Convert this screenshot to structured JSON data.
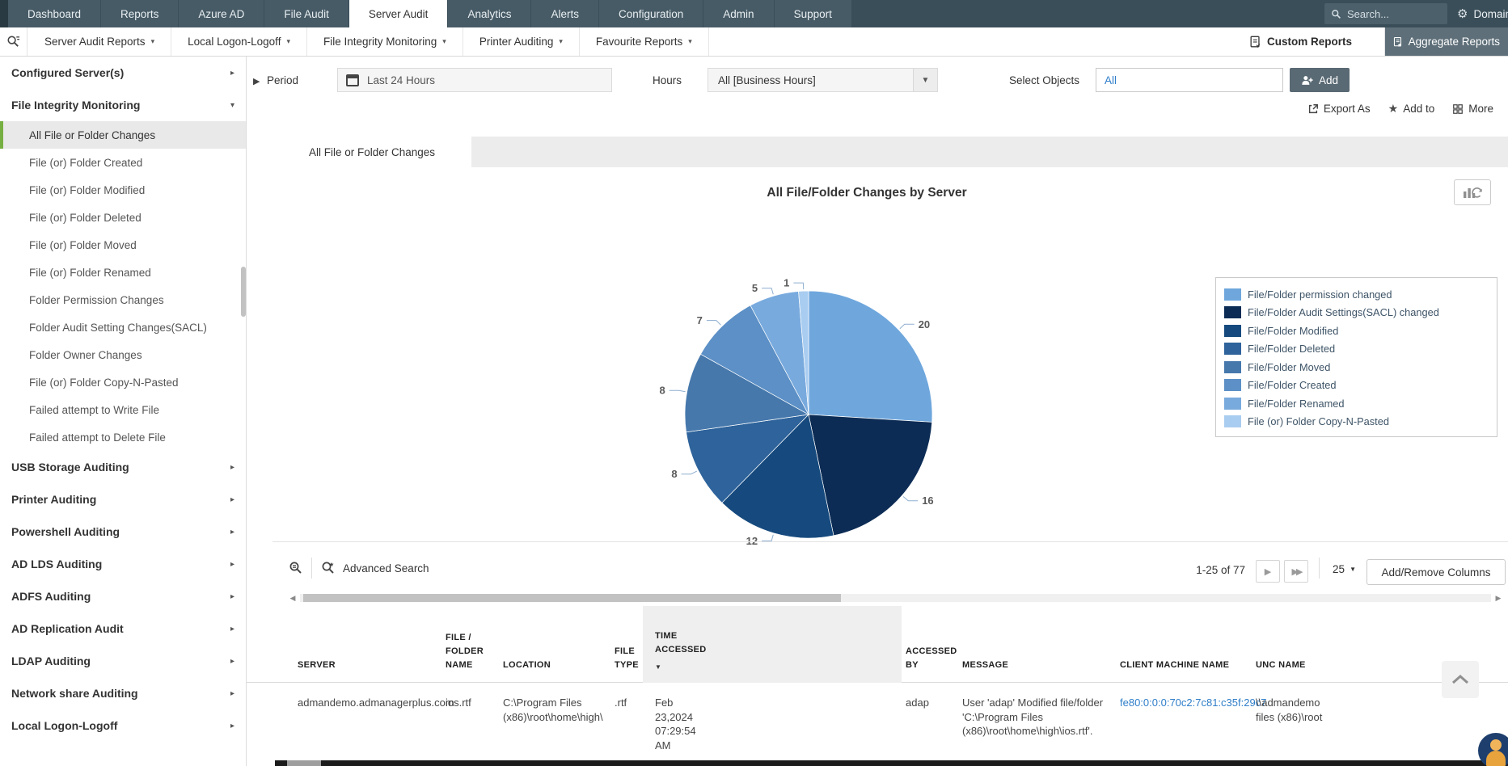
{
  "topnav": {
    "tabs": [
      {
        "label": "Dashboard",
        "active": false
      },
      {
        "label": "Reports",
        "active": false
      },
      {
        "label": "Azure AD",
        "active": false
      },
      {
        "label": "File Audit",
        "active": false
      },
      {
        "label": "Server Audit",
        "active": true
      },
      {
        "label": "Analytics",
        "active": false
      },
      {
        "label": "Alerts",
        "active": false
      },
      {
        "label": "Configuration",
        "active": false
      },
      {
        "label": "Admin",
        "active": false
      },
      {
        "label": "Support",
        "active": false
      }
    ],
    "search_placeholder": "Search...",
    "domain_settings_label": "Domain Settings"
  },
  "menubar": {
    "menus": [
      "Server Audit Reports",
      "Local Logon-Logoff",
      "File Integrity Monitoring",
      "Printer Auditing",
      "Favourite Reports"
    ],
    "custom_reports_label": "Custom Reports",
    "aggregate_reports_label": "Aggregate Reports"
  },
  "sidebar": {
    "entries": [
      {
        "label": "Configured Server(s)",
        "type": "section",
        "state": "collapsed"
      },
      {
        "label": "File Integrity Monitoring",
        "type": "section",
        "state": "expanded"
      },
      {
        "label": "All File or Folder Changes",
        "type": "item",
        "active": true
      },
      {
        "label": "File (or) Folder Created",
        "type": "item",
        "active": false
      },
      {
        "label": "File (or) Folder Modified",
        "type": "item",
        "active": false
      },
      {
        "label": "File (or) Folder Deleted",
        "type": "item",
        "active": false
      },
      {
        "label": "File (or) Folder Moved",
        "type": "item",
        "active": false
      },
      {
        "label": "File (or) Folder Renamed",
        "type": "item",
        "active": false
      },
      {
        "label": "Folder Permission Changes",
        "type": "item",
        "active": false
      },
      {
        "label": "Folder Audit Setting Changes(SACL)",
        "type": "item",
        "active": false
      },
      {
        "label": "Folder Owner Changes",
        "type": "item",
        "active": false
      },
      {
        "label": "File (or) Folder Copy-N-Pasted",
        "type": "item",
        "active": false
      },
      {
        "label": "Failed attempt to Write File",
        "type": "item",
        "active": false
      },
      {
        "label": "Failed attempt to Delete File",
        "type": "item",
        "active": false
      },
      {
        "label": "USB Storage Auditing",
        "type": "section",
        "state": "collapsed"
      },
      {
        "label": "Printer Auditing",
        "type": "section",
        "state": "collapsed"
      },
      {
        "label": "Powershell Auditing",
        "type": "section",
        "state": "collapsed"
      },
      {
        "label": "AD LDS Auditing",
        "type": "section",
        "state": "collapsed"
      },
      {
        "label": "ADFS Auditing",
        "type": "section",
        "state": "collapsed"
      },
      {
        "label": "AD Replication Audit",
        "type": "section",
        "state": "collapsed"
      },
      {
        "label": "LDAP Auditing",
        "type": "section",
        "state": "collapsed"
      },
      {
        "label": "Network share Auditing",
        "type": "section",
        "state": "collapsed"
      },
      {
        "label": "Local Logon-Logoff",
        "type": "section",
        "state": "collapsed"
      }
    ]
  },
  "filters": {
    "period_label": "Period",
    "period_value": "Last 24 Hours",
    "hours_label": "Hours",
    "hours_value": "All [Business Hours]",
    "objects_label": "Select Objects",
    "objects_value": "All",
    "add_button": "Add"
  },
  "actions": {
    "export_as": "Export As",
    "add_to": "Add to",
    "more": "More"
  },
  "report": {
    "active_tab": "All File or Folder Changes"
  },
  "chart_data": {
    "type": "pie",
    "title": "All File/Folder Changes by Server",
    "total": 77,
    "start_angle": "top",
    "direction": "clockwise",
    "legend_position": "right",
    "label_format": "value",
    "series": [
      {
        "name": "File/Folder permission changed",
        "value": 20,
        "color": "#6FA7DD"
      },
      {
        "name": "File/Folder Audit Settings(SACL) changed",
        "value": 16,
        "color": "#0C2C55"
      },
      {
        "name": "File/Folder Modified",
        "value": 12,
        "color": "#164A7E"
      },
      {
        "name": "File/Folder Deleted",
        "value": 8,
        "color": "#2E639B"
      },
      {
        "name": "File/Folder Moved",
        "value": 8,
        "color": "#4678AC"
      },
      {
        "name": "File/Folder Created",
        "value": 7,
        "color": "#5C90C6"
      },
      {
        "name": "File/Folder Renamed",
        "value": 5,
        "color": "#78AADE"
      },
      {
        "name": "File (or) Folder Copy-N-Pasted",
        "value": 1,
        "color": "#A9CDF0"
      }
    ]
  },
  "table": {
    "advanced_search_label": "Advanced Search",
    "paging": {
      "range": "1-25 of 77",
      "page_size": "25",
      "add_remove_columns": "Add/Remove Columns"
    },
    "columns": [
      {
        "label": "SERVER",
        "sorted": false
      },
      {
        "label": "FILE / FOLDER NAME",
        "sorted": false
      },
      {
        "label": "LOCATION",
        "sorted": false
      },
      {
        "label": "FILE TYPE",
        "sorted": false
      },
      {
        "label": "TIME ACCESSED",
        "sorted": true
      },
      {
        "label": "ACCESSED BY",
        "sorted": false
      },
      {
        "label": "MESSAGE",
        "sorted": false
      },
      {
        "label": "CLIENT MACHINE NAME",
        "sorted": false
      },
      {
        "label": "UNC NAME",
        "sorted": false
      }
    ],
    "rows": [
      {
        "server": "admandemo.admanagerplus.com",
        "file_folder_name": "ios.rtf",
        "location": "C:\\Program Files (x86)\\root\\home\\high\\",
        "file_type": ".rtf",
        "time_accessed": "Feb 23,2024 07:29:54 AM",
        "accessed_by": "adap",
        "message": "User 'adap' Modified file/folder 'C:\\Program Files (x86)\\root\\home\\high\\ios.rtf'.",
        "client_machine_name": "fe80:0:0:0:70c2:7c81:c35f:29c7",
        "unc_name": "\\\\admandemo\nfiles (x86)\\root"
      }
    ]
  },
  "colors": {
    "nav_background": "#3A4E59",
    "accent_green": "#76B043",
    "link_blue": "#2F7EC9",
    "dark_button": "#5A6A74"
  }
}
